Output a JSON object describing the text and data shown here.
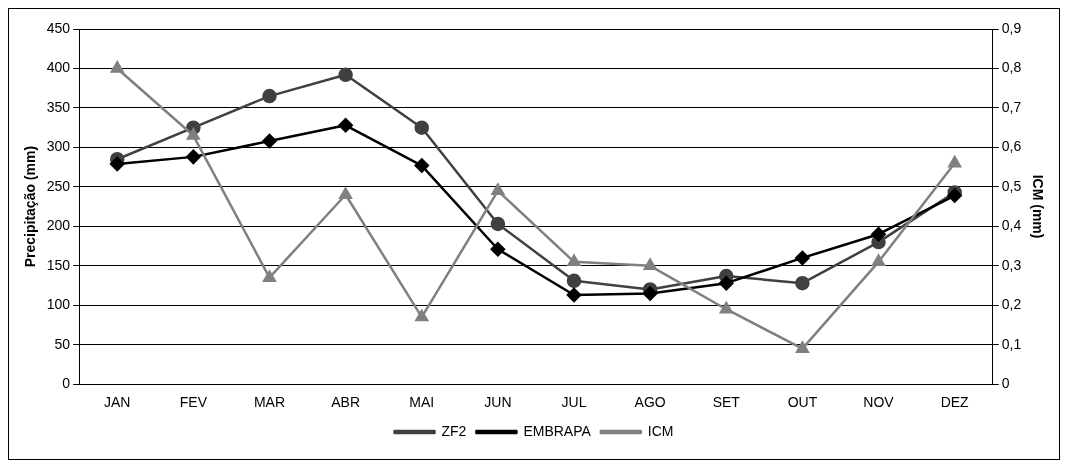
{
  "chart_data": {
    "type": "line",
    "ylabel": "Precipitação (mm)",
    "y2label": "ICM (mm)",
    "categories": [
      "JAN",
      "FEV",
      "MAR",
      "ABR",
      "MAI",
      "JUN",
      "JUL",
      "AGO",
      "SET",
      "OUT",
      "NOV",
      "DEZ"
    ],
    "series": [
      {
        "name": "ZF2",
        "color": "#404040",
        "marker": "circle",
        "values": [
          285,
          325,
          365,
          392,
          325,
          203,
          131,
          120,
          137,
          128,
          180,
          243
        ]
      },
      {
        "name": "EMBRAPA",
        "color": "#000000",
        "marker": "diamond",
        "values": [
          279,
          288,
          308,
          328,
          277,
          171,
          113,
          115,
          128,
          160,
          190,
          239
        ]
      },
      {
        "name": "ICM",
        "color": "#808080",
        "marker": "triangle",
        "axis": "y2",
        "values": [
          0.8,
          0.63,
          0.27,
          0.48,
          0.17,
          0.49,
          0.31,
          0.3,
          0.19,
          0.09,
          0.31,
          0.56
        ]
      }
    ],
    "ylim": [
      0,
      450
    ],
    "yticks": [
      0,
      50,
      100,
      150,
      200,
      250,
      300,
      350,
      400,
      450
    ],
    "y2lim": [
      0,
      0.9
    ],
    "y2ticks": [
      0,
      {
        "value": 0.1,
        "label": "0,1"
      },
      {
        "value": 0.2,
        "label": "0,2"
      },
      {
        "value": 0.3,
        "label": "0,3"
      },
      {
        "value": 0.4,
        "label": "0,4"
      },
      {
        "value": 0.5,
        "label": "0,5"
      },
      {
        "value": 0.6,
        "label": "0,6"
      },
      {
        "value": 0.7,
        "label": "0,7"
      },
      {
        "value": 0.8,
        "label": "0,8"
      },
      {
        "value": 0.9,
        "label": "0,9"
      }
    ],
    "grid": "y",
    "legend": "bottom",
    "line_style": "solid"
  }
}
